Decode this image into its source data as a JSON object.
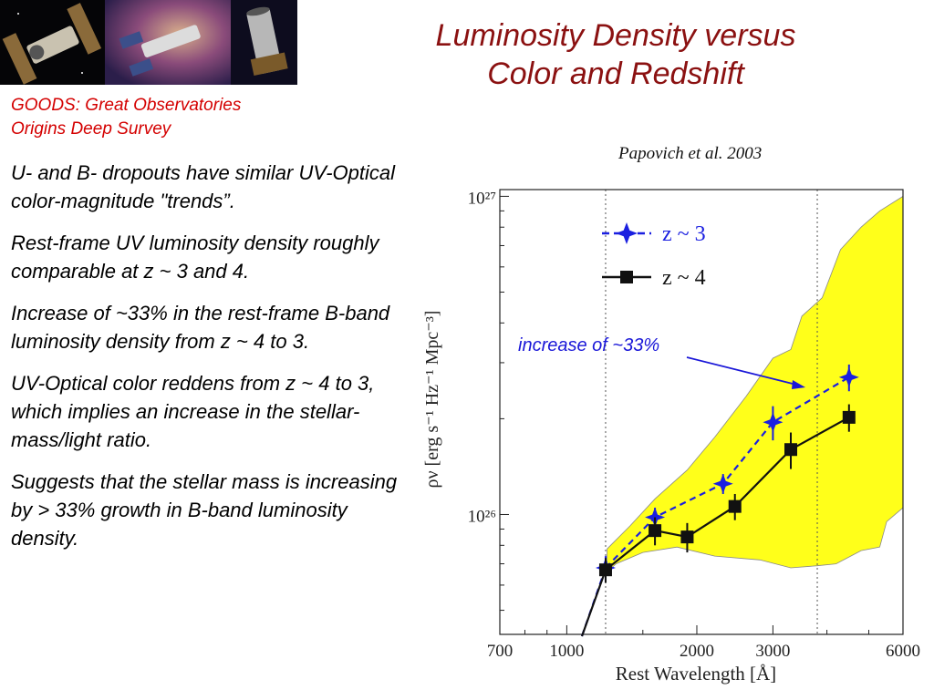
{
  "slide": {
    "title_line1": "Luminosity Density versus",
    "title_line2": "Color and Redshift",
    "subtitle_line1": "GOODS: Great Observatories",
    "subtitle_line2": "Origins Deep Survey",
    "bullets": [
      "U- and B- dropouts have similar UV-Optical color-magnitude \"trends”.",
      "Rest-frame UV luminosity density  roughly comparable at z ~ 3 and 4.",
      "Increase of ~33% in the rest-frame B-band luminosity density from z ~ 4 to 3.",
      "UV-Optical color reddens from z ~ 4 to 3, which implies an increase in the stellar-mass/light ratio.",
      "Suggests that the stellar mass is increasing by > 33% growth in B-band luminosity density."
    ],
    "citation": "Papovich et al. 2003",
    "annotation": "increase of ~33%",
    "thumbnails": [
      "telescope-1-icon",
      "telescope-2-icon",
      "telescope-3-icon"
    ]
  },
  "chart_data": {
    "type": "line",
    "xscale": "log",
    "yscale": "log",
    "xlabel": "Rest Wavelength [Å]",
    "ylabel": "ρν [erg s⁻¹ Hz⁻¹ Mpc⁻³]",
    "xlim": [
      700,
      6000
    ],
    "ylim": [
      4.2e+25,
      1.05e+27
    ],
    "x_ticks": [
      "700",
      "1000",
      "2000",
      "3000",
      "6000"
    ],
    "x_tick_values": [
      700,
      1000,
      2000,
      3000,
      6000
    ],
    "y_ticks": [
      "10²⁶",
      "10²⁷"
    ],
    "y_tick_values": [
      1e+26,
      1e+27
    ],
    "vlines": [
      1230,
      3800
    ],
    "colors": {
      "band": "#ffff1a",
      "z3": "#1a1fe0",
      "z4": "#111111"
    },
    "series": [
      {
        "name": "z ~ 3",
        "style": "dashed",
        "marker": "star",
        "x": [
          1230,
          1600,
          2300,
          3000,
          4500
        ],
        "y": [
          6.8e+25,
          9.8e+25,
          1.25e+26,
          1.95e+26,
          2.7e+26
        ],
        "yerr": [
          6e+24,
          7e+24,
          9e+24,
          2.4e+25,
          2.6e+25
        ]
      },
      {
        "name": "z ~ 4",
        "style": "solid",
        "marker": "square",
        "x": [
          1230,
          1600,
          1900,
          2450,
          3300,
          4500
        ],
        "y": [
          6.7e+25,
          8.9e+25,
          8.5e+25,
          1.06e+26,
          1.6e+26,
          2.02e+26
        ],
        "yerr": [
          6e+24,
          9e+24,
          9e+24,
          1e+25,
          2.1e+25,
          2e+25
        ]
      }
    ]
  }
}
